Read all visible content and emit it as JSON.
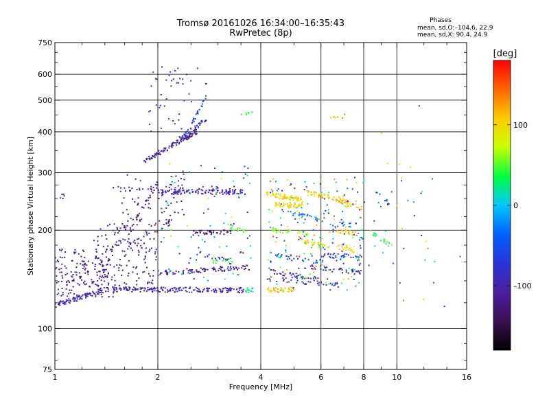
{
  "header": {
    "title": "Tromsø 20161026 16:34:00–16:35:43",
    "subtitle": "RwPretec (8p)",
    "stats_title": "Phases",
    "stats_line1": "mean, sd,O:–104.6, 22.9",
    "stats_line2": "mean, sd,X:  90.4, 24.9"
  },
  "colorbar": {
    "unit_label": "[deg]",
    "tick_labels": [
      "100",
      "0",
      "–100"
    ],
    "ticks": [
      100,
      0,
      -100
    ],
    "range": [
      -180,
      180
    ],
    "colors": [
      "#000000",
      "#3c0f50",
      "#4b1fa0",
      "#2a33d8",
      "#0060ff",
      "#00c8ff",
      "#00ff40",
      "#c8ff00",
      "#ffcc00",
      "#ff6600",
      "#ff0000"
    ]
  },
  "chart_data": {
    "type": "scatter",
    "title": "Tromsø 20161026 16:34:00–16:35:43",
    "subtitle": "RwPretec (8p)",
    "xlabel": "Frequency [MHz]",
    "ylabel": "Stationary phase Virtual Height [km]",
    "xscale": "log",
    "yscale": "log",
    "xlim": [
      1,
      16
    ],
    "ylim": [
      75,
      750
    ],
    "x_ticks": [
      1,
      2,
      4,
      6,
      8,
      10,
      16
    ],
    "x_tick_labels": [
      "1",
      "2",
      "4",
      "6",
      "8",
      "10",
      "16"
    ],
    "x_minor_ticks": [
      1.2,
      1.4,
      1.6,
      1.8,
      2.5,
      3,
      3.5,
      5,
      7,
      9,
      12,
      14
    ],
    "x_gridlines": [
      2,
      4,
      6,
      8,
      10
    ],
    "y_ticks": [
      75,
      100,
      200,
      300,
      400,
      500,
      600,
      750
    ],
    "y_tick_labels": [
      "75",
      "100",
      "200",
      "300",
      "400",
      "500",
      "600",
      "750"
    ],
    "y_minor_ticks": [
      80,
      90,
      120,
      140,
      160,
      180,
      220,
      250,
      275,
      350,
      450,
      550,
      650,
      700
    ],
    "y_gridlines": [
      100,
      200,
      300,
      400,
      500,
      600
    ],
    "color_by": "phase [deg]",
    "traces": [
      {
        "x": [
          1.0,
          1.42
        ],
        "h": [
          118,
          132
        ],
        "p": -95,
        "n": 90
      },
      {
        "x": [
          1.42,
          3.6
        ],
        "h": [
          132,
          131
        ],
        "p": -95,
        "n": 190
      },
      {
        "x": [
          3.6,
          3.8
        ],
        "h": [
          131,
          131
        ],
        "p": 20,
        "n": 14
      },
      {
        "x": [
          4.15,
          5.0
        ],
        "h": [
          131,
          132
        ],
        "p": 110,
        "n": 40
      },
      {
        "x": [
          2.0,
          3.7
        ],
        "h": [
          148,
          154
        ],
        "p": -110,
        "n": 90
      },
      {
        "x": [
          2.6,
          3.3
        ],
        "h": [
          170,
          160
        ],
        "p": -70,
        "n": 20
      },
      {
        "x": [
          2.85,
          3.3
        ],
        "h": [
          158,
          162
        ],
        "p": 40,
        "n": 12
      },
      {
        "x": [
          2.5,
          3.3
        ],
        "h": [
          196,
          198
        ],
        "p": -130,
        "n": 40
      },
      {
        "x": [
          3.2,
          3.6
        ],
        "h": [
          205,
          200
        ],
        "p": 40,
        "n": 14
      },
      {
        "x": [
          2.05,
          2.2
        ],
        "h": [
          205,
          215
        ],
        "p": -110,
        "n": 12
      },
      {
        "x": [
          2.0,
          3.6
        ],
        "h": [
          262,
          262
        ],
        "p": -90,
        "n": 110
      },
      {
        "x": [
          1.45,
          3.4
        ],
        "h": [
          268,
          268
        ],
        "p": -115,
        "n": 35
      },
      {
        "x": [
          1.03,
          1.08
        ],
        "h": [
          252,
          255
        ],
        "p": -110,
        "n": 5
      },
      {
        "x": [
          1.82,
          2.6
        ],
        "h": [
          325,
          400
        ],
        "p": -110,
        "n": 110
      },
      {
        "x": [
          2.3,
          2.8
        ],
        "h": [
          380,
          440
        ],
        "p": -80,
        "n": 40
      },
      {
        "x": [
          2.5,
          2.8
        ],
        "h": [
          420,
          520
        ],
        "p": -60,
        "n": 22
      },
      {
        "x": [
          1.65,
          2.0
        ],
        "h": [
          200,
          280
        ],
        "p": -120,
        "n": 30
      },
      {
        "x": [
          4.15,
          5.3
        ],
        "h": [
          258,
          248
        ],
        "p": 100,
        "n": 70
      },
      {
        "x": [
          4.4,
          5.3
        ],
        "h": [
          240,
          238
        ],
        "p": 100,
        "n": 50
      },
      {
        "x": [
          5.5,
          7.3
        ],
        "h": [
          262,
          242
        ],
        "p": 110,
        "n": 60
      },
      {
        "x": [
          4.8,
          6.2
        ],
        "h": [
          225,
          215
        ],
        "p": -30,
        "n": 25
      },
      {
        "x": [
          4.3,
          5.6
        ],
        "h": [
          200,
          195
        ],
        "p": 60,
        "n": 30
      },
      {
        "x": [
          5.2,
          7.5
        ],
        "h": [
          185,
          175
        ],
        "p": 100,
        "n": 50
      },
      {
        "x": [
          4.4,
          6.0
        ],
        "h": [
          168,
          160
        ],
        "p": -60,
        "n": 25
      },
      {
        "x": [
          4.2,
          6.2
        ],
        "h": [
          150,
          140
        ],
        "p": -90,
        "n": 40
      },
      {
        "x": [
          4.1,
          6.8
        ],
        "h": [
          142,
          136
        ],
        "p": -80,
        "n": 40
      },
      {
        "x": [
          5.5,
          8.0
        ],
        "h": [
          155,
          148
        ],
        "p": -100,
        "n": 40
      },
      {
        "x": [
          6.0,
          8.0
        ],
        "h": [
          168,
          165
        ],
        "p": -70,
        "n": 30
      },
      {
        "x": [
          6.6,
          7.6
        ],
        "h": [
          200,
          195
        ],
        "p": 110,
        "n": 20
      },
      {
        "x": [
          6.2,
          7.6
        ],
        "h": [
          208,
          208
        ],
        "p": -30,
        "n": 15
      },
      {
        "x": [
          7.0,
          7.9
        ],
        "h": [
          240,
          235
        ],
        "p": 110,
        "n": 15
      },
      {
        "x": [
          8.3,
          9.5
        ],
        "h": [
          200,
          180
        ],
        "p": 40,
        "n": 20
      },
      {
        "x": [
          8.5,
          9.5
        ],
        "h": [
          270,
          240
        ],
        "p": -50,
        "n": 12
      },
      {
        "x": [
          6.4,
          7.1
        ],
        "h": [
          445,
          445
        ],
        "p": 120,
        "n": 8
      },
      {
        "x": [
          3.5,
          3.8
        ],
        "h": [
          452,
          455
        ],
        "p": 40,
        "n": 6
      }
    ],
    "clouds": [
      {
        "x": [
          1.0,
          1.5
        ],
        "h": [
          125,
          175
        ],
        "p": [
          -140,
          -90
        ],
        "n": 170
      },
      {
        "x": [
          1.3,
          2.0
        ],
        "h": [
          135,
          210
        ],
        "p": [
          -140,
          -80
        ],
        "n": 160
      },
      {
        "x": [
          1.55,
          1.95
        ],
        "h": [
          200,
          300
        ],
        "p": [
          -140,
          -90
        ],
        "n": 40
      },
      {
        "x": [
          2.0,
          2.4
        ],
        "h": [
          200,
          300
        ],
        "p": [
          -130,
          -80
        ],
        "n": 40
      },
      {
        "x": [
          1.85,
          2.8
        ],
        "h": [
          400,
          640
        ],
        "p": [
          -110,
          -50
        ],
        "n": 45
      },
      {
        "x": [
          2.0,
          3.8
        ],
        "h": [
          140,
          320
        ],
        "p": [
          -130,
          100
        ],
        "n": 80
      },
      {
        "x": [
          4.2,
          8.0
        ],
        "h": [
          130,
          290
        ],
        "p": [
          -130,
          150
        ],
        "n": 220
      },
      {
        "x": [
          8.0,
          12.5
        ],
        "h": [
          150,
          320
        ],
        "p": [
          -120,
          100
        ],
        "n": 25
      },
      {
        "x": [
          9.0,
          15.5
        ],
        "h": [
          115,
          560
        ],
        "p": [
          -110,
          150
        ],
        "n": 14
      }
    ]
  }
}
